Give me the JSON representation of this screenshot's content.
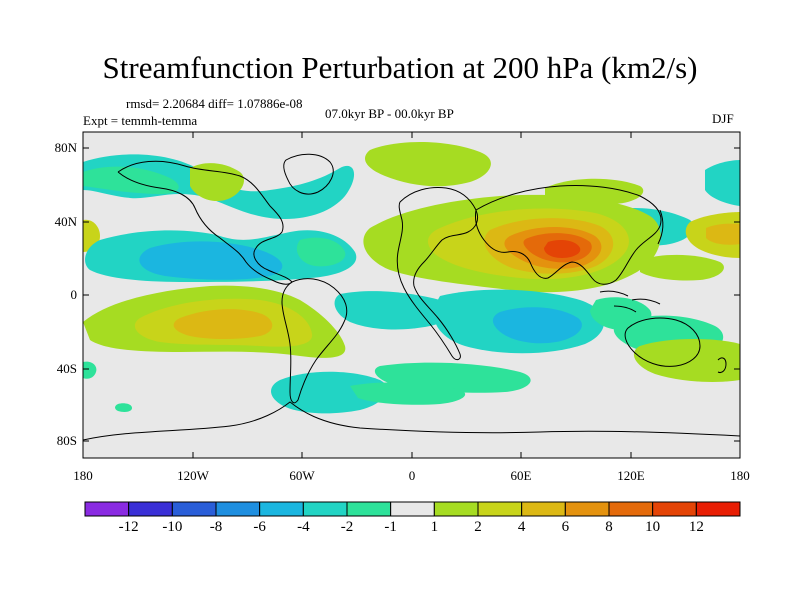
{
  "title": "Streamfunction Perturbation at 200 hPa (km2/s)",
  "stats": "rmsd= 2.20684 diff= 1.07886e-08",
  "experiment": "Expt = temmh-temma",
  "period": "07.0kyr BP - 00.0kyr BP",
  "season": "DJF",
  "lat_ticks": [
    "80N",
    "40N",
    "0",
    "40S",
    "80S"
  ],
  "lon_ticks": [
    "180",
    "120W",
    "60W",
    "0",
    "60E",
    "120E",
    "180"
  ],
  "colorbar": {
    "labels": [
      "-12",
      "-10",
      "-8",
      "-6",
      "-4",
      "-2",
      "-1",
      "1",
      "2",
      "4",
      "6",
      "8",
      "10",
      "12"
    ],
    "colors": [
      "#8a2be2",
      "#3a2fd6",
      "#2a5ed8",
      "#1f8fe0",
      "#1bb6e0",
      "#22d4c4",
      "#2ee29a",
      "#e8e8e8",
      "#a6dc22",
      "#c8d41a",
      "#dcb814",
      "#e4920e",
      "#e46a0a",
      "#e44406",
      "#e81e04"
    ]
  },
  "colors": {
    "neutral": "#e8e8e8",
    "coast": "#000000"
  }
}
